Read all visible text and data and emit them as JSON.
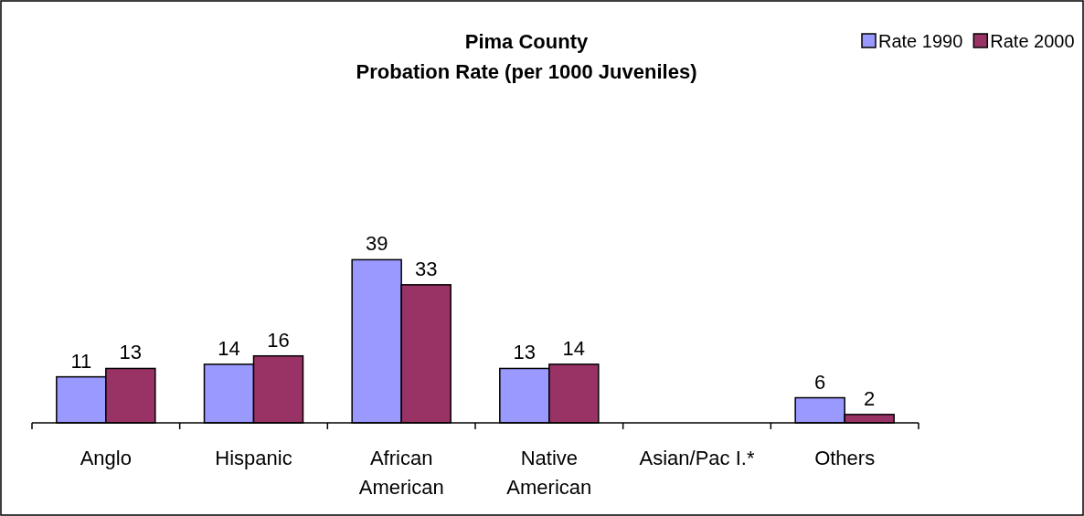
{
  "chart_data": {
    "type": "bar",
    "title": "Pima County\nProbation Rate (per 1000 Juveniles)",
    "categories": [
      "Anglo",
      "Hispanic",
      "African American",
      "Native American",
      "Asian/Pac I.*",
      "Others"
    ],
    "series": [
      {
        "name": "Rate 1990",
        "color": "#9999ff",
        "values": [
          11,
          14,
          39,
          13,
          null,
          6
        ]
      },
      {
        "name": "Rate 2000",
        "color": "#993366",
        "values": [
          13,
          16,
          33,
          14,
          null,
          2
        ]
      }
    ],
    "data_labels": true,
    "legend": "top right",
    "grid": false
  }
}
